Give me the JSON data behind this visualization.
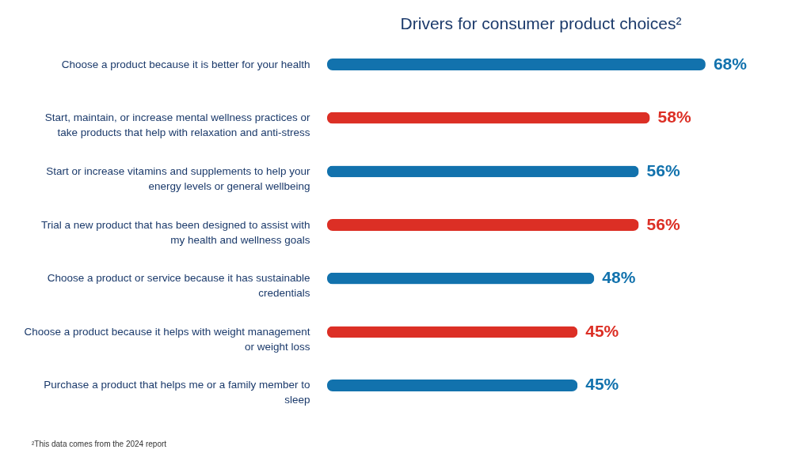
{
  "chart_data": {
    "type": "bar",
    "orientation": "horizontal",
    "title": "Drivers for consumer product choices²",
    "categories": [
      "Choose a product because it is better for your health",
      "Start, maintain, or increase mental wellness practices or take products that help with relaxation and anti-stress",
      "Start or increase vitamins and supplements to help your energy levels or general wellbeing",
      "Trial a new product that has been designed to assist with my health and wellness goals",
      "Choose a product or service because it has sustainable credentials",
      "Choose a product because it helps with weight management or weight loss",
      "Purchase a product that helps me or a family member to sleep"
    ],
    "values": [
      68,
      58,
      56,
      56,
      48,
      45,
      45
    ],
    "value_labels": [
      "68%",
      "58%",
      "56%",
      "56%",
      "48%",
      "45%",
      "45%"
    ],
    "colors": [
      "#1272ad",
      "#dc2f25",
      "#1272ad",
      "#dc2f25",
      "#1272ad",
      "#dc2f25",
      "#1272ad"
    ],
    "grid": false,
    "annotations": [
      "²This data comes from the 2024 report"
    ]
  }
}
